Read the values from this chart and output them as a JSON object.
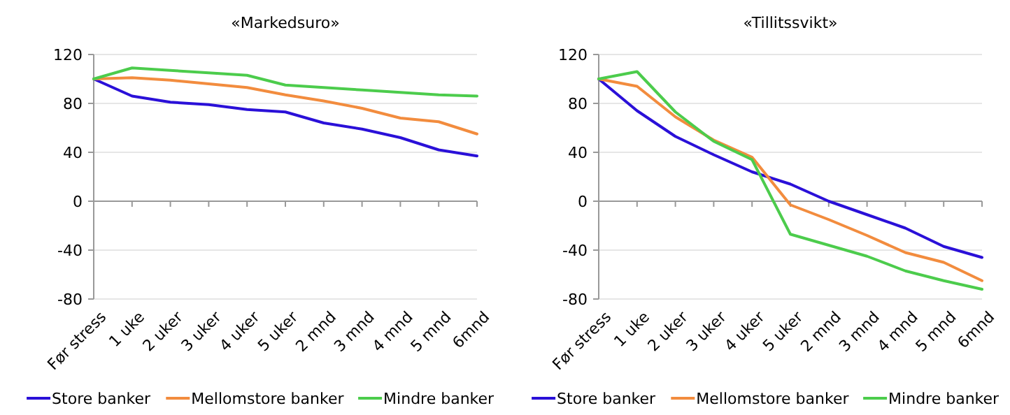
{
  "chart_data": [
    {
      "type": "line",
      "title": "«Markedsuro»",
      "categories": [
        "Før stress",
        "1 uke",
        "2 uker",
        "3 uker",
        "4 uker",
        "5 uker",
        "2 mnd",
        "3 mnd",
        "4 mnd",
        "5 mnd",
        "6mnd"
      ],
      "ylim": [
        -80,
        120
      ],
      "yticks": [
        -80,
        -40,
        0,
        40,
        80,
        120
      ],
      "grid": "y",
      "legend": "bottom",
      "series": [
        {
          "name": "Store banker",
          "color": "#2a10d8",
          "values": [
            100,
            86,
            81,
            79,
            75,
            73,
            64,
            59,
            52,
            42,
            37
          ]
        },
        {
          "name": "Mellomstore banker",
          "color": "#f28c3e",
          "values": [
            100,
            101,
            99,
            96,
            93,
            87,
            82,
            76,
            68,
            65,
            55
          ]
        },
        {
          "name": "Mindre banker",
          "color": "#4ccc4c",
          "values": [
            100,
            109,
            107,
            105,
            103,
            95,
            93,
            91,
            89,
            87,
            86
          ]
        }
      ]
    },
    {
      "type": "line",
      "title": "«Tillitssvikt»",
      "categories": [
        "Før stress",
        "1 uke",
        "2 uker",
        "3 uker",
        "4 uker",
        "5 uker",
        "2 mnd",
        "3 mnd",
        "4 mnd",
        "5 mnd",
        "6mnd"
      ],
      "ylim": [
        -80,
        120
      ],
      "yticks": [
        -80,
        -40,
        0,
        40,
        80,
        120
      ],
      "grid": "y",
      "legend": "bottom",
      "series": [
        {
          "name": "Store banker",
          "color": "#2a10d8",
          "values": [
            100,
            74,
            53,
            38,
            24,
            14,
            0,
            -11,
            -22,
            -37,
            -46
          ]
        },
        {
          "name": "Mellomstore banker",
          "color": "#f28c3e",
          "values": [
            100,
            94,
            69,
            50,
            36,
            -3,
            -15,
            -28,
            -42,
            -50,
            -65
          ]
        },
        {
          "name": "Mindre banker",
          "color": "#4ccc4c",
          "values": [
            100,
            106,
            73,
            49,
            34,
            -27,
            -36,
            -45,
            -57,
            -65,
            -72
          ]
        }
      ]
    }
  ]
}
